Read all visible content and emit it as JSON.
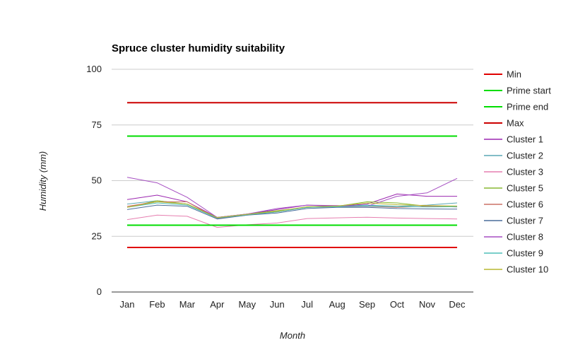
{
  "chart_data": {
    "type": "line",
    "title": "Spruce cluster humidity suitability",
    "xlabel": "Month",
    "ylabel": "Humidity (mm)",
    "ylim": [
      0,
      100
    ],
    "yticks": [
      0,
      25,
      50,
      75,
      100
    ],
    "grid": true,
    "legend_position": "right",
    "categories": [
      "Jan",
      "Feb",
      "Mar",
      "Apr",
      "May",
      "Jun",
      "Jul",
      "Aug",
      "Sep",
      "Oct",
      "Nov",
      "Dec"
    ],
    "series": [
      {
        "name": "Min",
        "color": "#e00000",
        "values": [
          20,
          20,
          20,
          20,
          20,
          20,
          20,
          20,
          20,
          20,
          20,
          20
        ]
      },
      {
        "name": "Prime start",
        "color": "#00dd00",
        "values": [
          30,
          30,
          30,
          30,
          30,
          30,
          30,
          30,
          30,
          30,
          30,
          30
        ]
      },
      {
        "name": "Prime end",
        "color": "#00dd00",
        "values": [
          70,
          70,
          70,
          70,
          70,
          70,
          70,
          70,
          70,
          70,
          70,
          70
        ]
      },
      {
        "name": "Max",
        "color": "#cc0000",
        "values": [
          85,
          85,
          85,
          85,
          85,
          85,
          85,
          85,
          85,
          85,
          85,
          85
        ]
      },
      {
        "name": "Cluster 1",
        "color": "#9c27b0",
        "values": [
          41.5,
          43.5,
          40.5,
          33.5,
          35,
          37,
          39,
          38.5,
          39.5,
          44,
          43,
          43
        ]
      },
      {
        "name": "Cluster 2",
        "color": "#5aa7b5",
        "values": [
          39.5,
          41,
          39.5,
          33,
          34.5,
          36,
          38,
          38.5,
          39,
          38.5,
          39,
          40
        ]
      },
      {
        "name": "Cluster 3",
        "color": "#e67fb0",
        "values": [
          32.5,
          34.5,
          34,
          29,
          30.2,
          31,
          33,
          33.3,
          33.6,
          33.2,
          33,
          32.8
        ]
      },
      {
        "name": "Cluster 5",
        "color": "#88b832",
        "values": [
          38,
          41,
          39.5,
          33.5,
          35,
          36.5,
          38,
          38.5,
          40.5,
          40,
          38.5,
          38.5
        ]
      },
      {
        "name": "Cluster 6",
        "color": "#cc7066",
        "values": [
          38.5,
          40.5,
          40.5,
          33,
          34.8,
          36,
          38.2,
          38.2,
          38.5,
          38,
          38.5,
          38.2
        ]
      },
      {
        "name": "Cluster 7",
        "color": "#4a6d9a",
        "values": [
          37,
          39,
          38.5,
          32.8,
          34.5,
          35.5,
          37.5,
          38,
          38,
          37.5,
          37.3,
          37.2
        ]
      },
      {
        "name": "Cluster 8",
        "color": "#a64fc2",
        "values": [
          51.5,
          49,
          42.5,
          33.5,
          35,
          37.5,
          39,
          38.8,
          38.5,
          43,
          44.5,
          51
        ]
      },
      {
        "name": "Cluster 9",
        "color": "#4fbfb8",
        "values": [
          38,
          40,
          39,
          33.2,
          34.7,
          36,
          38,
          38.3,
          38.6,
          38.4,
          38.2,
          38.3
        ]
      },
      {
        "name": "Cluster 10",
        "color": "#b8b832",
        "values": [
          38,
          40.5,
          39.5,
          33.4,
          34.9,
          36.3,
          38.3,
          38.6,
          40,
          39.2,
          38.8,
          38.6
        ]
      }
    ]
  }
}
